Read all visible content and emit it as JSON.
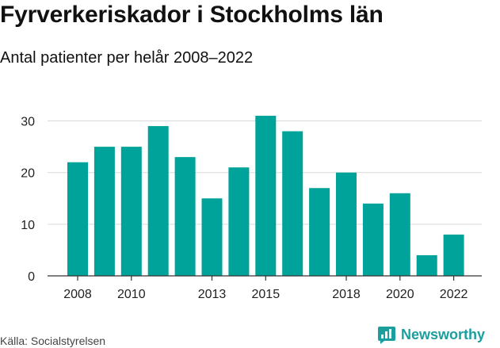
{
  "header": {
    "title": "Fyrverkeriskador i Stockholms län",
    "subtitle": "Antal patienter per helår 2008–2022"
  },
  "footer": {
    "source": "Källa: Socialstyrelsen",
    "brand_name": "Newsworthy",
    "brand_icon": "chart-logo-icon"
  },
  "colors": {
    "bar": "#00a39a",
    "grid": "#d9d9d9",
    "axis": "#333333",
    "brand": "#1b9e9e"
  },
  "chart_data": {
    "type": "bar",
    "x": [
      2008,
      2009,
      2010,
      2011,
      2012,
      2013,
      2014,
      2015,
      2016,
      2017,
      2018,
      2019,
      2020,
      2021,
      2022
    ],
    "values": [
      22,
      25,
      25,
      29,
      23,
      15,
      21,
      31,
      28,
      17,
      20,
      14,
      16,
      4,
      8
    ],
    "x_tick_labels": [
      "2008",
      "2010",
      "2013",
      "2015",
      "2018",
      "2020",
      "2022"
    ],
    "y_ticks": [
      0,
      10,
      20,
      30
    ],
    "ylim": [
      0,
      33
    ],
    "grid": true,
    "xlabel": "",
    "ylabel": ""
  }
}
